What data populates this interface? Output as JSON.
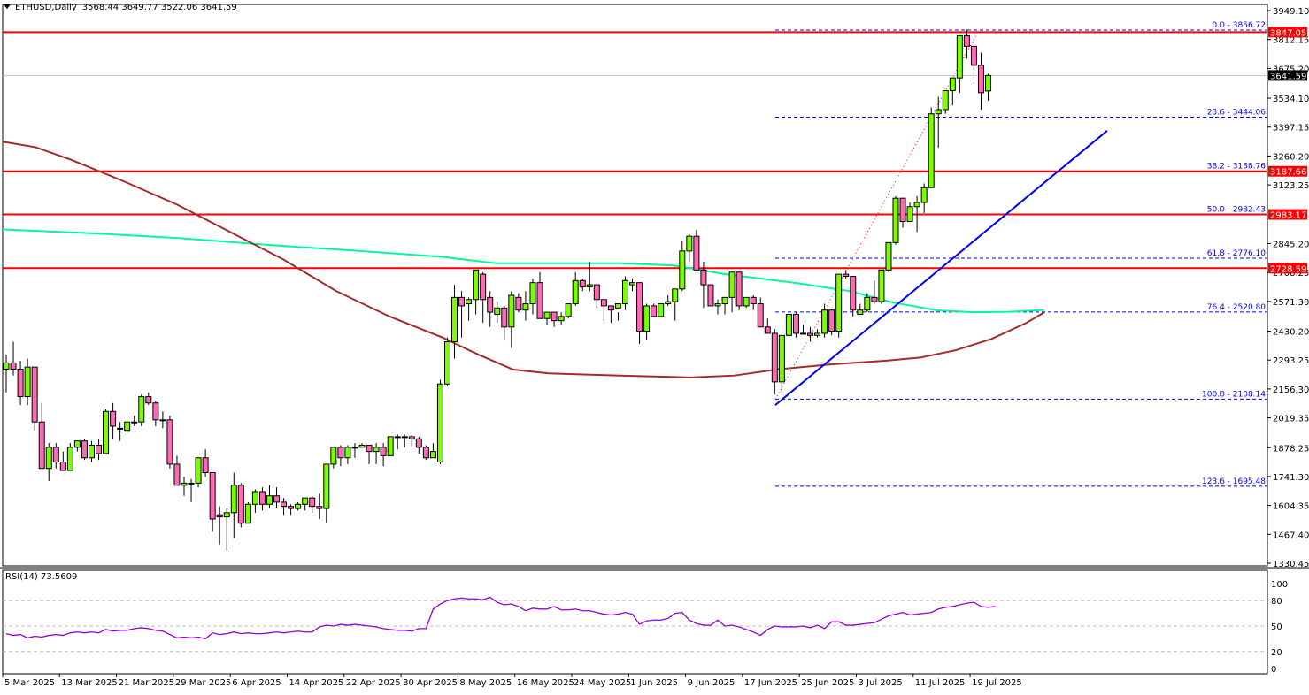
{
  "header": {
    "symbol": "ETHUSD,Daily",
    "ohlc": "3568.44 3649.77 3522.06 3641.59"
  },
  "rsi": {
    "label": "RSI(14) 73.5609",
    "levels": [
      "100",
      "80",
      "50",
      "20",
      "0"
    ]
  },
  "colors": {
    "bull": "#7CFC00",
    "bear": "#FF69B4",
    "outline": "#000000",
    "horizontal_line": "#FF0000",
    "fib": "#0000FF",
    "trendline": "#0000FF",
    "ma_fast": "#00FA9A",
    "ma_slow": "#A52A2A",
    "rsi_line": "#9400D3",
    "price_tag_current": "#000000"
  },
  "chart_data": {
    "type": "candlestick",
    "title": "ETHUSD, Daily",
    "xlabel": "",
    "ylabel": "",
    "ylim": [
      1330.45,
      3949.1
    ],
    "y_ticks": [
      "3949.10",
      "3812.15",
      "3675.20",
      "3534.10",
      "3397.15",
      "3260.20",
      "3123.25",
      "2845.20",
      "2708.25",
      "2571.30",
      "2430.20",
      "2293.25",
      "2156.30",
      "2019.35",
      "1878.25",
      "1741.30",
      "1604.35",
      "1467.40",
      "1330.45"
    ],
    "x_ticks": [
      "5 Mar 2025",
      "13 Mar 2025",
      "21 Mar 2025",
      "29 Mar 2025",
      "6 Apr 2025",
      "14 Apr 2025",
      "22 Apr 2025",
      "30 Apr 2025",
      "8 May 2025",
      "16 May 2025",
      "24 May 2025",
      "1 Jun 2025",
      "9 Jun 2025",
      "17 Jun 2025",
      "25 Jun 2025",
      "3 Jul 2025",
      "11 Jul 2025",
      "19 Jul 2025"
    ],
    "current_price": "3641.59",
    "last_ohlc": {
      "open": 3568.44,
      "high": 3649.77,
      "low": 3522.06,
      "close": 3641.59
    },
    "horizontal_levels": [
      {
        "value": 3847.05,
        "label": "3847.05"
      },
      {
        "value": 3187.66,
        "label": "3187.66"
      },
      {
        "value": 2983.17,
        "label": "2983.17"
      },
      {
        "value": 2728.59,
        "label": "2728.59"
      }
    ],
    "fibonacci": [
      {
        "level": "0.0",
        "value": 3856.72,
        "label": "0.0 - 3856.72"
      },
      {
        "level": "23.6",
        "value": 3444.06,
        "label": "23.6 - 3444.06"
      },
      {
        "level": "38.2",
        "value": 3188.76,
        "label": "38.2 - 3188.76"
      },
      {
        "level": "50.0",
        "value": 2982.43,
        "label": "50.0 - 2982.43"
      },
      {
        "level": "61.8",
        "value": 2776.1,
        "label": "61.8 - 2776.10"
      },
      {
        "level": "76.4",
        "value": 2520.8,
        "label": "76.4 - 2520.80"
      },
      {
        "level": "100.0",
        "value": 2108.14,
        "label": "100.0 - 2108.14"
      },
      {
        "level": "123.6",
        "value": 1695.48,
        "label": "123.6 - 1695.48"
      }
    ],
    "trendline": {
      "from": {
        "x": 876,
        "price": 2080
      },
      "to": {
        "x": 1251,
        "price": 3380
      }
    },
    "candles": [
      [
        2250,
        2320,
        2140,
        2280
      ],
      [
        2280,
        2380,
        2220,
        2250
      ],
      [
        2250,
        2290,
        2080,
        2120
      ],
      [
        2120,
        2300,
        2080,
        2260
      ],
      [
        2260,
        2260,
        1960,
        2000
      ],
      [
        2000,
        2090,
        1800,
        1780
      ],
      [
        1780,
        1900,
        1720,
        1880
      ],
      [
        1880,
        1900,
        1780,
        1810
      ],
      [
        1810,
        1860,
        1770,
        1770
      ],
      [
        1770,
        1900,
        1770,
        1880
      ],
      [
        1880,
        1900,
        1860,
        1910
      ],
      [
        1910,
        1920,
        1820,
        1830
      ],
      [
        1830,
        1910,
        1810,
        1890
      ],
      [
        1890,
        1920,
        1820,
        1850
      ],
      [
        1850,
        2060,
        1850,
        2050
      ],
      [
        2050,
        2090,
        1920,
        1980
      ],
      [
        1970,
        2000,
        1910,
        1970
      ],
      [
        1960,
        2000,
        1950,
        2000
      ],
      [
        2000,
        2030,
        1980,
        2000
      ],
      [
        2000,
        2130,
        1980,
        2120
      ],
      [
        2120,
        2140,
        2080,
        2090
      ],
      [
        2090,
        2100,
        1980,
        2010
      ],
      [
        2010,
        2050,
        1970,
        2010
      ],
      [
        2010,
        2030,
        1780,
        1800
      ],
      [
        1800,
        1840,
        1700,
        1700
      ],
      [
        1700,
        1740,
        1650,
        1710
      ],
      [
        1710,
        1730,
        1620,
        1710
      ],
      [
        1710,
        1830,
        1690,
        1830
      ],
      [
        1830,
        1870,
        1740,
        1760
      ],
      [
        1760,
        1750,
        1480,
        1540
      ],
      [
        1560,
        1600,
        1420,
        1550
      ],
      [
        1550,
        1590,
        1390,
        1570
      ],
      [
        1570,
        1760,
        1450,
        1700
      ],
      [
        1700,
        1710,
        1500,
        1520
      ],
      [
        1520,
        1620,
        1560,
        1610
      ],
      [
        1610,
        1680,
        1570,
        1670
      ],
      [
        1670,
        1690,
        1580,
        1610
      ],
      [
        1610,
        1700,
        1590,
        1650
      ],
      [
        1650,
        1690,
        1590,
        1620
      ],
      [
        1620,
        1640,
        1560,
        1600
      ],
      [
        1600,
        1610,
        1560,
        1590
      ],
      [
        1590,
        1620,
        1580,
        1610
      ],
      [
        1610,
        1640,
        1580,
        1640
      ],
      [
        1640,
        1650,
        1570,
        1600
      ],
      [
        1600,
        1660,
        1540,
        1590
      ],
      [
        1590,
        1770,
        1520,
        1800
      ],
      [
        1800,
        1880,
        1780,
        1880
      ],
      [
        1880,
        1890,
        1790,
        1830
      ],
      [
        1830,
        1890,
        1800,
        1880
      ],
      [
        1880,
        1900,
        1830,
        1880
      ],
      [
        1880,
        1900,
        1880,
        1890
      ],
      [
        1890,
        1890,
        1800,
        1860
      ],
      [
        1860,
        1900,
        1800,
        1880
      ],
      [
        1880,
        1900,
        1790,
        1840
      ],
      [
        1840,
        1930,
        1850,
        1930
      ],
      [
        1930,
        1940,
        1870,
        1930
      ],
      [
        1930,
        1940,
        1880,
        1930
      ],
      [
        1930,
        1940,
        1880,
        1920
      ],
      [
        1920,
        1930,
        1850,
        1880
      ],
      [
        1880,
        1890,
        1820,
        1830
      ],
      [
        1830,
        1900,
        1840,
        1860
      ],
      [
        1810,
        2200,
        1800,
        2180
      ],
      [
        2180,
        2400,
        2170,
        2380
      ],
      [
        2380,
        2650,
        2300,
        2590
      ],
      [
        2590,
        2620,
        2400,
        2550
      ],
      [
        2560,
        2590,
        2480,
        2580
      ],
      [
        2580,
        2710,
        2510,
        2720
      ],
      [
        2700,
        2710,
        2470,
        2580
      ],
      [
        2590,
        2620,
        2450,
        2520
      ],
      [
        2510,
        2570,
        2470,
        2540
      ],
      [
        2540,
        2550,
        2390,
        2450
      ],
      [
        2450,
        2620,
        2350,
        2600
      ],
      [
        2590,
        2610,
        2520,
        2530
      ],
      [
        2530,
        2620,
        2480,
        2560
      ],
      [
        2560,
        2680,
        2510,
        2660
      ],
      [
        2660,
        2710,
        2510,
        2490
      ],
      [
        2490,
        2500,
        2460,
        2520
      ],
      [
        2520,
        2510,
        2450,
        2480
      ],
      [
        2480,
        2520,
        2460,
        2500
      ],
      [
        2500,
        2550,
        2490,
        2560
      ],
      [
        2560,
        2710,
        2550,
        2670
      ],
      [
        2670,
        2680,
        2620,
        2640
      ],
      [
        2640,
        2760,
        2620,
        2650
      ],
      [
        2650,
        2640,
        2540,
        2580
      ],
      [
        2580,
        2570,
        2480,
        2550
      ],
      [
        2550,
        2540,
        2470,
        2530
      ],
      [
        2540,
        2520,
        2480,
        2560
      ],
      [
        2560,
        2690,
        2530,
        2670
      ],
      [
        2650,
        2680,
        2620,
        2660
      ],
      [
        2660,
        2650,
        2370,
        2430
      ],
      [
        2430,
        2560,
        2390,
        2550
      ],
      [
        2550,
        2560,
        2500,
        2500
      ],
      [
        2500,
        2560,
        2500,
        2560
      ],
      [
        2560,
        2600,
        2550,
        2570
      ],
      [
        2570,
        2630,
        2480,
        2630
      ],
      [
        2630,
        2860,
        2620,
        2810
      ],
      [
        2810,
        2890,
        2760,
        2880
      ],
      [
        2880,
        2910,
        2720,
        2720
      ],
      [
        2720,
        2760,
        2540,
        2650
      ],
      [
        2650,
        2630,
        2550,
        2550
      ],
      [
        2550,
        2580,
        2510,
        2560
      ],
      [
        2560,
        2590,
        2510,
        2590
      ],
      [
        2590,
        2700,
        2520,
        2710
      ],
      [
        2710,
        2700,
        2530,
        2550
      ],
      [
        2550,
        2590,
        2540,
        2590
      ],
      [
        2590,
        2600,
        2530,
        2560
      ],
      [
        2560,
        2590,
        2480,
        2450
      ],
      [
        2450,
        2490,
        2430,
        2420
      ],
      [
        2420,
        2440,
        2130,
        2190
      ],
      [
        2190,
        2400,
        2140,
        2410
      ],
      [
        2410,
        2490,
        2410,
        2510
      ],
      [
        2510,
        2520,
        2400,
        2420
      ],
      [
        2420,
        2460,
        2420,
        2420
      ],
      [
        2420,
        2450,
        2380,
        2410
      ],
      [
        2410,
        2440,
        2400,
        2420
      ],
      [
        2420,
        2560,
        2400,
        2530
      ],
      [
        2530,
        2500,
        2410,
        2430
      ],
      [
        2430,
        2700,
        2400,
        2700
      ],
      [
        2700,
        2720,
        2680,
        2690
      ],
      [
        2690,
        2690,
        2500,
        2530
      ],
      [
        2510,
        2560,
        2510,
        2530
      ],
      [
        2530,
        2610,
        2520,
        2590
      ],
      [
        2590,
        2670,
        2560,
        2570
      ],
      [
        2570,
        2720,
        2560,
        2720
      ],
      [
        2720,
        2830,
        2710,
        2850
      ],
      [
        2850,
        3070,
        2840,
        3060
      ],
      [
        3060,
        3060,
        2920,
        2950
      ],
      [
        2950,
        3040,
        2950,
        3020
      ],
      [
        3020,
        3070,
        2900,
        3040
      ],
      [
        3040,
        3130,
        2990,
        3110
      ],
      [
        3110,
        3490,
        3110,
        3460
      ],
      [
        3460,
        3540,
        3300,
        3480
      ],
      [
        3480,
        3550,
        3460,
        3570
      ],
      [
        3570,
        3580,
        3500,
        3630
      ],
      [
        3630,
        3820,
        3560,
        3830
      ],
      [
        3830,
        3860,
        3720,
        3780
      ],
      [
        3780,
        3830,
        3600,
        3690
      ],
      [
        3690,
        3750,
        3480,
        3560
      ],
      [
        3568.44,
        3649.77,
        3522.06,
        3641.59
      ]
    ],
    "moving_averages": [
      {
        "name": "MA fast (green)",
        "color": "#00FA9A",
        "points": [
          [
            3,
            2912
          ],
          [
            100,
            2895
          ],
          [
            200,
            2872
          ],
          [
            300,
            2840
          ],
          [
            400,
            2812
          ],
          [
            500,
            2782
          ],
          [
            560,
            2752
          ],
          [
            700,
            2752
          ],
          [
            760,
            2742
          ],
          [
            820,
            2700
          ],
          [
            900,
            2658
          ],
          [
            960,
            2620
          ],
          [
            1010,
            2565
          ],
          [
            1060,
            2528
          ],
          [
            1100,
            2520
          ],
          [
            1140,
            2522
          ],
          [
            1180,
            2531
          ]
        ]
      },
      {
        "name": "MA slow (brown)",
        "color": "#A52A2A",
        "points": [
          [
            3,
            3328
          ],
          [
            40,
            3302
          ],
          [
            80,
            3243
          ],
          [
            140,
            3140
          ],
          [
            200,
            3030
          ],
          [
            260,
            2900
          ],
          [
            320,
            2770
          ],
          [
            380,
            2620
          ],
          [
            440,
            2500
          ],
          [
            500,
            2400
          ],
          [
            540,
            2320
          ],
          [
            580,
            2248
          ],
          [
            620,
            2230
          ],
          [
            700,
            2220
          ],
          [
            780,
            2211
          ],
          [
            830,
            2220
          ],
          [
            880,
            2250
          ],
          [
            940,
            2273
          ],
          [
            1000,
            2290
          ],
          [
            1040,
            2305
          ],
          [
            1080,
            2340
          ],
          [
            1120,
            2393
          ],
          [
            1160,
            2470
          ],
          [
            1180,
            2520
          ]
        ]
      }
    ],
    "rsi_series": [
      41,
      39,
      40,
      36,
      38,
      37,
      39,
      40,
      39,
      42,
      43,
      42,
      43,
      42,
      46,
      44,
      45,
      45,
      47,
      48,
      47,
      45,
      44,
      40,
      36,
      37,
      36,
      37,
      35,
      42,
      40,
      41,
      43,
      41,
      42,
      41,
      41,
      42,
      43,
      42,
      43,
      44,
      43,
      43,
      49,
      51,
      50,
      52,
      51,
      52,
      51,
      50,
      49,
      47,
      46,
      45,
      45,
      44,
      47,
      47,
      70,
      76,
      80,
      82,
      83,
      82,
      82,
      81,
      84,
      78,
      75,
      76,
      73,
      68,
      71,
      70,
      70,
      73,
      69,
      69,
      70,
      68,
      68,
      66,
      64,
      63,
      64,
      66,
      64,
      52,
      56,
      57,
      57,
      59,
      65,
      66,
      57,
      53,
      51,
      51,
      57,
      50,
      51,
      49,
      46,
      43,
      39,
      46,
      50,
      49,
      49,
      49,
      50,
      48,
      51,
      47,
      55,
      55,
      51,
      51,
      52,
      53,
      54,
      58,
      62,
      64,
      66,
      63,
      64,
      65,
      66,
      70,
      72,
      73,
      75,
      77,
      78,
      73,
      72,
      73
    ]
  }
}
